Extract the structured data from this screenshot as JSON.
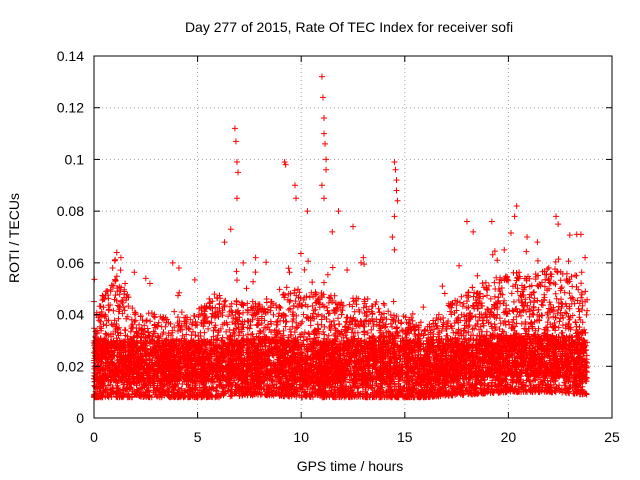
{
  "chart_data": {
    "type": "scatter",
    "title": "Day 277 of 2015, Rate Of TEC Index for receiver sofi",
    "xlabel": "GPS time / hours",
    "ylabel": "ROTI / TECUs",
    "xlim": [
      0,
      25
    ],
    "ylim": [
      0,
      0.14
    ],
    "x_ticks": [
      0,
      5,
      10,
      15,
      20,
      25
    ],
    "x_tick_labels": [
      "0",
      "5",
      "10",
      "15",
      "20",
      "25"
    ],
    "y_ticks": [
      0,
      0.02,
      0.04,
      0.06,
      0.08,
      0.1,
      0.12,
      0.14
    ],
    "y_tick_labels": [
      "0",
      "0.02",
      "0.04",
      "0.06",
      "0.08",
      "0.1",
      "0.12",
      "0.14"
    ],
    "grid": true,
    "marker": "plus",
    "color": "#ff0000",
    "series": [
      {
        "name": "ROTI",
        "description": "dense cloud of ROTI samples from 0 to ~23.8 h, mostly 0.008-0.04 TECU/min with scattered peaks",
        "bulk_envelope": [
          {
            "hour": 0,
            "low": 0.008,
            "high": 0.035
          },
          {
            "hour": 1,
            "low": 0.008,
            "high": 0.05
          },
          {
            "hour": 2,
            "low": 0.008,
            "high": 0.038
          },
          {
            "hour": 4,
            "low": 0.008,
            "high": 0.034
          },
          {
            "hour": 6,
            "low": 0.008,
            "high": 0.042
          },
          {
            "hour": 8,
            "low": 0.009,
            "high": 0.04
          },
          {
            "hour": 10,
            "low": 0.008,
            "high": 0.045
          },
          {
            "hour": 12,
            "low": 0.008,
            "high": 0.042
          },
          {
            "hour": 14,
            "low": 0.008,
            "high": 0.04
          },
          {
            "hour": 16,
            "low": 0.008,
            "high": 0.032
          },
          {
            "hour": 18,
            "low": 0.009,
            "high": 0.045
          },
          {
            "hour": 20,
            "low": 0.01,
            "high": 0.05
          },
          {
            "hour": 22,
            "low": 0.01,
            "high": 0.052
          },
          {
            "hour": 23.8,
            "low": 0.009,
            "high": 0.048
          }
        ],
        "notable_points": [
          [
            0.0,
            0.045
          ],
          [
            0.3,
            0.04
          ],
          [
            0.9,
            0.058
          ],
          [
            1.1,
            0.064
          ],
          [
            1.3,
            0.062
          ],
          [
            1.5,
            0.052
          ],
          [
            2.5,
            0.054
          ],
          [
            2.7,
            0.052
          ],
          [
            3.8,
            0.06
          ],
          [
            4.1,
            0.058
          ],
          [
            6.3,
            0.068
          ],
          [
            6.6,
            0.073
          ],
          [
            6.8,
            0.112
          ],
          [
            6.85,
            0.107
          ],
          [
            6.9,
            0.099
          ],
          [
            6.95,
            0.095
          ],
          [
            6.9,
            0.085
          ],
          [
            7.2,
            0.06
          ],
          [
            7.8,
            0.062
          ],
          [
            9.2,
            0.099
          ],
          [
            9.25,
            0.098
          ],
          [
            9.7,
            0.09
          ],
          [
            9.75,
            0.085
          ],
          [
            10.3,
            0.08
          ],
          [
            11.0,
            0.132
          ],
          [
            11.05,
            0.124
          ],
          [
            11.1,
            0.116
          ],
          [
            11.1,
            0.11
          ],
          [
            11.15,
            0.106
          ],
          [
            11.2,
            0.1
          ],
          [
            11.2,
            0.096
          ],
          [
            11.0,
            0.09
          ],
          [
            11.1,
            0.085
          ],
          [
            11.5,
            0.072
          ],
          [
            11.8,
            0.08
          ],
          [
            12.5,
            0.074
          ],
          [
            13.0,
            0.062
          ],
          [
            14.5,
            0.099
          ],
          [
            14.55,
            0.096
          ],
          [
            14.6,
            0.092
          ],
          [
            14.6,
            0.088
          ],
          [
            14.65,
            0.084
          ],
          [
            14.5,
            0.078
          ],
          [
            14.4,
            0.07
          ],
          [
            14.5,
            0.065
          ],
          [
            18.0,
            0.076
          ],
          [
            18.3,
            0.072
          ],
          [
            19.2,
            0.076
          ],
          [
            19.8,
            0.065
          ],
          [
            20.3,
            0.078
          ],
          [
            20.4,
            0.082
          ],
          [
            20.9,
            0.07
          ],
          [
            21.4,
            0.068
          ],
          [
            22.3,
            0.078
          ],
          [
            22.4,
            0.075
          ],
          [
            23.3,
            0.071
          ],
          [
            23.5,
            0.071
          ],
          [
            23.7,
            0.062
          ]
        ]
      }
    ]
  }
}
